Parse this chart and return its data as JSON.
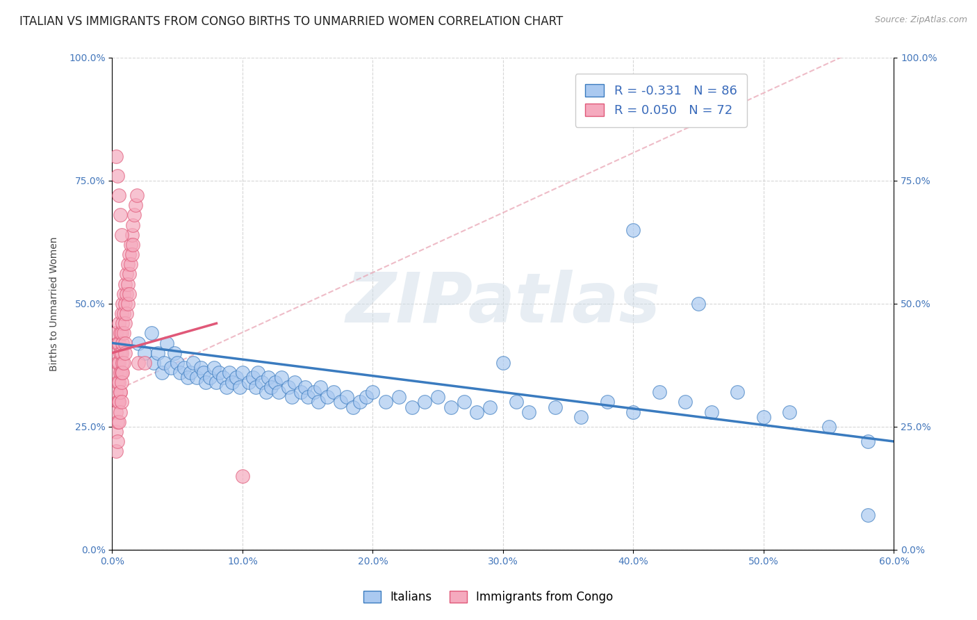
{
  "title": "ITALIAN VS IMMIGRANTS FROM CONGO BIRTHS TO UNMARRIED WOMEN CORRELATION CHART",
  "source": "Source: ZipAtlas.com",
  "ylabel": "Births to Unmarried Women",
  "xlim": [
    0.0,
    0.6
  ],
  "ylim": [
    0.0,
    1.0
  ],
  "yticks": [
    0.0,
    0.25,
    0.5,
    0.75,
    1.0
  ],
  "ytick_labels": [
    "0.0%",
    "25.0%",
    "50.0%",
    "75.0%",
    "100.0%"
  ],
  "xticks": [
    0.0,
    0.1,
    0.2,
    0.3,
    0.4,
    0.5,
    0.6
  ],
  "xtick_labels": [
    "0.0%",
    "10.0%",
    "20.0%",
    "30.0%",
    "40.0%",
    "50.0%",
    "60.0%"
  ],
  "blue_R": -0.331,
  "blue_N": 86,
  "pink_R": 0.05,
  "pink_N": 72,
  "blue_color": "#aac9f0",
  "pink_color": "#f5aabe",
  "blue_line_color": "#3a7bbf",
  "pink_line_color": "#e05878",
  "pink_dash_color": "#e8a0b0",
  "watermark_text": "ZIPatlas",
  "legend_label_blue": "Italians",
  "legend_label_pink": "Immigrants from Congo",
  "blue_scatter_x": [
    0.02,
    0.025,
    0.03,
    0.032,
    0.035,
    0.038,
    0.04,
    0.042,
    0.045,
    0.048,
    0.05,
    0.052,
    0.055,
    0.058,
    0.06,
    0.062,
    0.065,
    0.068,
    0.07,
    0.072,
    0.075,
    0.078,
    0.08,
    0.082,
    0.085,
    0.088,
    0.09,
    0.092,
    0.095,
    0.098,
    0.1,
    0.105,
    0.108,
    0.11,
    0.112,
    0.115,
    0.118,
    0.12,
    0.122,
    0.125,
    0.128,
    0.13,
    0.135,
    0.138,
    0.14,
    0.145,
    0.148,
    0.15,
    0.155,
    0.158,
    0.16,
    0.165,
    0.17,
    0.175,
    0.18,
    0.185,
    0.19,
    0.195,
    0.2,
    0.21,
    0.22,
    0.23,
    0.24,
    0.25,
    0.26,
    0.27,
    0.28,
    0.29,
    0.3,
    0.31,
    0.32,
    0.34,
    0.36,
    0.38,
    0.4,
    0.42,
    0.44,
    0.46,
    0.48,
    0.5,
    0.52,
    0.55,
    0.58,
    0.4,
    0.45,
    0.58
  ],
  "blue_scatter_y": [
    0.42,
    0.4,
    0.44,
    0.38,
    0.4,
    0.36,
    0.38,
    0.42,
    0.37,
    0.4,
    0.38,
    0.36,
    0.37,
    0.35,
    0.36,
    0.38,
    0.35,
    0.37,
    0.36,
    0.34,
    0.35,
    0.37,
    0.34,
    0.36,
    0.35,
    0.33,
    0.36,
    0.34,
    0.35,
    0.33,
    0.36,
    0.34,
    0.35,
    0.33,
    0.36,
    0.34,
    0.32,
    0.35,
    0.33,
    0.34,
    0.32,
    0.35,
    0.33,
    0.31,
    0.34,
    0.32,
    0.33,
    0.31,
    0.32,
    0.3,
    0.33,
    0.31,
    0.32,
    0.3,
    0.31,
    0.29,
    0.3,
    0.31,
    0.32,
    0.3,
    0.31,
    0.29,
    0.3,
    0.31,
    0.29,
    0.3,
    0.28,
    0.29,
    0.38,
    0.3,
    0.28,
    0.29,
    0.27,
    0.3,
    0.28,
    0.32,
    0.3,
    0.28,
    0.32,
    0.27,
    0.28,
    0.25,
    0.22,
    0.65,
    0.5,
    0.07
  ],
  "pink_scatter_x": [
    0.003,
    0.003,
    0.003,
    0.003,
    0.004,
    0.004,
    0.004,
    0.004,
    0.005,
    0.005,
    0.005,
    0.005,
    0.005,
    0.006,
    0.006,
    0.006,
    0.006,
    0.007,
    0.007,
    0.007,
    0.007,
    0.008,
    0.008,
    0.008,
    0.008,
    0.009,
    0.009,
    0.009,
    0.01,
    0.01,
    0.01,
    0.01,
    0.011,
    0.011,
    0.011,
    0.012,
    0.012,
    0.012,
    0.013,
    0.013,
    0.013,
    0.014,
    0.014,
    0.015,
    0.015,
    0.016,
    0.016,
    0.017,
    0.018,
    0.019,
    0.003,
    0.003,
    0.003,
    0.004,
    0.004,
    0.005,
    0.005,
    0.006,
    0.006,
    0.007,
    0.007,
    0.008,
    0.009,
    0.01,
    0.003,
    0.004,
    0.005,
    0.006,
    0.007,
    0.02,
    0.025,
    0.1
  ],
  "pink_scatter_y": [
    0.44,
    0.4,
    0.36,
    0.32,
    0.42,
    0.38,
    0.34,
    0.3,
    0.46,
    0.42,
    0.38,
    0.34,
    0.3,
    0.44,
    0.4,
    0.36,
    0.32,
    0.48,
    0.44,
    0.4,
    0.36,
    0.5,
    0.46,
    0.42,
    0.38,
    0.52,
    0.48,
    0.44,
    0.54,
    0.5,
    0.46,
    0.42,
    0.56,
    0.52,
    0.48,
    0.58,
    0.54,
    0.5,
    0.6,
    0.56,
    0.52,
    0.62,
    0.58,
    0.64,
    0.6,
    0.66,
    0.62,
    0.68,
    0.7,
    0.72,
    0.28,
    0.24,
    0.2,
    0.26,
    0.22,
    0.3,
    0.26,
    0.32,
    0.28,
    0.34,
    0.3,
    0.36,
    0.38,
    0.4,
    0.8,
    0.76,
    0.72,
    0.68,
    0.64,
    0.38,
    0.38,
    0.15
  ],
  "title_fontsize": 12,
  "axis_fontsize": 10,
  "tick_fontsize": 10,
  "background_color": "#ffffff",
  "grid_color": "#cccccc"
}
